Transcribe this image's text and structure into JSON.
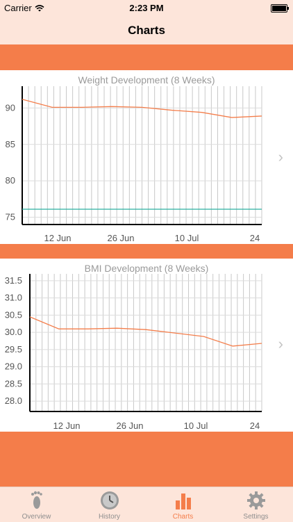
{
  "status_bar": {
    "carrier": "Carrier",
    "time": "2:23 PM"
  },
  "nav": {
    "title": "Charts"
  },
  "colors": {
    "accent": "#f47d4a",
    "bar_bg": "#fde5da",
    "line": "#f47d4a",
    "goal": "#2ab0a0"
  },
  "charts": [
    {
      "title": "Weight Development (8 Weeks)"
    },
    {
      "title": "BMI Development (8 Weeks)"
    }
  ],
  "chart_data": [
    {
      "type": "line",
      "title": "Weight Development (8 Weeks)",
      "xlabel": "",
      "ylabel": "",
      "x_ticks": [
        "12 Jun",
        "26 Jun",
        "10 Jul",
        "24"
      ],
      "y_ticks": [
        "90",
        "85",
        "80",
        "75"
      ],
      "ylim": [
        74,
        93
      ],
      "xlim": [
        0,
        56
      ],
      "grid": "vertical",
      "series": [
        {
          "x": [
            0,
            7,
            14,
            21,
            28,
            35,
            42,
            49,
            56
          ],
          "values": [
            91.2,
            90.1,
            90.1,
            90.2,
            90.1,
            89.7,
            89.4,
            88.7,
            88.9
          ]
        }
      ],
      "goal": 76.1
    },
    {
      "type": "line",
      "title": "BMI Development (8 Weeks)",
      "xlabel": "",
      "ylabel": "",
      "x_ticks": [
        "12 Jun",
        "26 Jun",
        "10 Jul",
        "24"
      ],
      "y_ticks": [
        "31.5",
        "31.0",
        "30.5",
        "30.0",
        "29.5",
        "29.0",
        "28.5",
        "28.0"
      ],
      "ylim": [
        27.7,
        31.7
      ],
      "xlim": [
        0,
        56
      ],
      "grid": "vertical",
      "series": [
        {
          "x": [
            0,
            7,
            14,
            21,
            28,
            35,
            42,
            49,
            56
          ],
          "values": [
            30.45,
            30.1,
            30.1,
            30.12,
            30.08,
            29.98,
            29.88,
            29.6,
            29.68
          ]
        }
      ]
    }
  ],
  "tabs": [
    {
      "label": "Overview",
      "icon": "footprint-icon"
    },
    {
      "label": "History",
      "icon": "clock-icon"
    },
    {
      "label": "Charts",
      "icon": "bar-chart-icon"
    },
    {
      "label": "Settings",
      "icon": "gear-icon"
    }
  ]
}
